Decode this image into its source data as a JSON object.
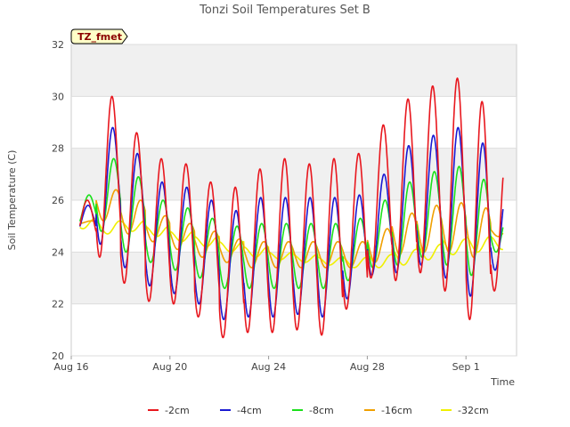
{
  "chart_data": {
    "type": "line",
    "title": "Tonzi Soil Temperatures Set B",
    "xlabel": "Time",
    "ylabel": "Soil Temperature (C)",
    "badge": "TZ_fmet",
    "ylim": [
      20,
      32
    ],
    "yticks": [
      20,
      22,
      24,
      26,
      28,
      30,
      32
    ],
    "xlim_days": [
      0,
      18
    ],
    "xticks": [
      {
        "label": "Aug 16",
        "day": 0
      },
      {
        "label": "Aug 20",
        "day": 4
      },
      {
        "label": "Aug 24",
        "day": 8
      },
      {
        "label": "Aug 28",
        "day": 12
      },
      {
        "label": "Sep 1",
        "day": 16
      }
    ],
    "grid": true,
    "legend_position": "bottom",
    "series": [
      {
        "name": "-2cm",
        "color": "#e8171e",
        "daily_min": [
          24.5,
          23.8,
          22.8,
          22.1,
          22.0,
          21.5,
          20.7,
          20.9,
          20.9,
          21.0,
          20.8,
          21.8,
          23.0,
          22.9,
          23.2,
          22.5,
          21.4,
          22.5
        ],
        "daily_max": [
          26.0,
          30.0,
          28.6,
          27.6,
          27.4,
          26.7,
          26.5,
          27.2,
          27.6,
          27.4,
          27.6,
          27.8,
          28.9,
          29.9,
          30.4,
          30.7,
          29.8,
          28.0
        ]
      },
      {
        "name": "-4cm",
        "color": "#1a1ad2",
        "daily_min": [
          24.7,
          24.3,
          23.4,
          22.7,
          22.4,
          22.0,
          21.4,
          21.5,
          21.5,
          21.6,
          21.5,
          22.2,
          23.1,
          23.2,
          23.5,
          23.0,
          22.3,
          23.3
        ],
        "daily_max": [
          25.8,
          28.8,
          27.8,
          26.7,
          26.5,
          26.0,
          25.6,
          26.1,
          26.1,
          26.1,
          26.1,
          26.2,
          27.0,
          28.1,
          28.5,
          28.8,
          28.2,
          26.6
        ]
      },
      {
        "name": "-8cm",
        "color": "#1ae01a",
        "daily_min": [
          25.0,
          24.8,
          24.0,
          23.6,
          23.3,
          23.0,
          22.6,
          22.6,
          22.6,
          22.6,
          22.6,
          22.9,
          23.4,
          23.5,
          23.8,
          23.5,
          23.1,
          24.0
        ],
        "daily_max": [
          26.2,
          27.6,
          26.9,
          26.0,
          25.7,
          25.3,
          25.0,
          25.1,
          25.1,
          25.1,
          25.1,
          25.3,
          26.0,
          26.7,
          27.1,
          27.3,
          26.8,
          25.6
        ]
      },
      {
        "name": "-16cm",
        "color": "#f0a000",
        "daily_min": [
          25.1,
          25.2,
          24.7,
          24.4,
          24.1,
          23.8,
          23.6,
          23.4,
          23.4,
          23.4,
          23.4,
          23.4,
          23.6,
          23.9,
          24.0,
          24.0,
          23.8,
          24.6
        ],
        "daily_max": [
          25.2,
          26.4,
          26.0,
          25.4,
          25.1,
          24.8,
          24.5,
          24.4,
          24.4,
          24.4,
          24.4,
          24.4,
          24.9,
          25.5,
          25.8,
          25.9,
          25.7,
          25.0
        ]
      },
      {
        "name": "-32cm",
        "color": "#f0f000",
        "daily_min": [
          24.9,
          24.7,
          24.8,
          24.6,
          24.4,
          24.2,
          24.0,
          23.8,
          23.7,
          23.6,
          23.5,
          23.4,
          23.4,
          23.5,
          23.7,
          23.9,
          24.0,
          24.1
        ],
        "daily_max": [
          25.3,
          25.2,
          25.2,
          25.0,
          24.8,
          24.6,
          24.4,
          24.2,
          24.0,
          23.9,
          23.8,
          23.8,
          23.9,
          24.1,
          24.3,
          24.5,
          24.6,
          24.6
        ]
      }
    ]
  }
}
